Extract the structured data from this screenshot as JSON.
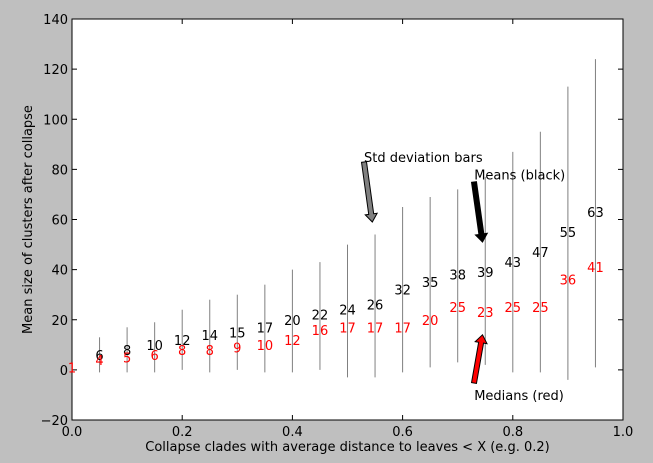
{
  "chart_data": {
    "type": "errorbar-annotated",
    "title": "",
    "xlabel": "Collapse clades with average distance to leaves < X (e.g. 0.2)",
    "ylabel": "Mean size of clusters after collapse",
    "xlim": [
      0.0,
      1.0
    ],
    "ylim": [
      -20,
      140
    ],
    "xticks": [
      "0.0",
      "0.2",
      "0.4",
      "0.6",
      "0.8",
      "1.0"
    ],
    "yticks": [
      "−20",
      "0",
      "20",
      "40",
      "60",
      "80",
      "100",
      "120",
      "140"
    ],
    "xtick_values": [
      0.0,
      0.2,
      0.4,
      0.6,
      0.8,
      1.0
    ],
    "ytick_values": [
      -20,
      0,
      20,
      40,
      60,
      80,
      100,
      120,
      140
    ],
    "points": [
      {
        "x": 0.0,
        "mean": null,
        "median": 1,
        "lo": null,
        "hi": null
      },
      {
        "x": 0.05,
        "mean": 6,
        "median": 4,
        "lo": -1,
        "hi": 13
      },
      {
        "x": 0.1,
        "mean": 8,
        "median": 5,
        "lo": -1,
        "hi": 17
      },
      {
        "x": 0.15,
        "mean": 10,
        "median": 6,
        "lo": -1,
        "hi": 19
      },
      {
        "x": 0.2,
        "mean": 12,
        "median": 8,
        "lo": 0,
        "hi": 24
      },
      {
        "x": 0.25,
        "mean": 14,
        "median": 8,
        "lo": -1,
        "hi": 28
      },
      {
        "x": 0.3,
        "mean": 15,
        "median": 9,
        "lo": 0,
        "hi": 30
      },
      {
        "x": 0.35,
        "mean": 17,
        "median": 10,
        "lo": -1,
        "hi": 34
      },
      {
        "x": 0.4,
        "mean": 20,
        "median": 12,
        "lo": -1,
        "hi": 40
      },
      {
        "x": 0.45,
        "mean": 22,
        "median": 16,
        "lo": 0,
        "hi": 43
      },
      {
        "x": 0.5,
        "mean": 24,
        "median": 17,
        "lo": -3,
        "hi": 50
      },
      {
        "x": 0.55,
        "mean": 26,
        "median": 17,
        "lo": -3,
        "hi": 54
      },
      {
        "x": 0.6,
        "mean": 32,
        "median": 17,
        "lo": -1,
        "hi": 65
      },
      {
        "x": 0.65,
        "mean": 35,
        "median": 20,
        "lo": 1,
        "hi": 69
      },
      {
        "x": 0.7,
        "mean": 38,
        "median": 25,
        "lo": 3,
        "hi": 72
      },
      {
        "x": 0.75,
        "mean": 39,
        "median": 23,
        "lo": 2,
        "hi": 77
      },
      {
        "x": 0.8,
        "mean": 43,
        "median": 25,
        "lo": -1,
        "hi": 87
      },
      {
        "x": 0.85,
        "mean": 47,
        "median": 25,
        "lo": -1,
        "hi": 95
      },
      {
        "x": 0.9,
        "mean": 55,
        "median": 36,
        "lo": -4,
        "hi": 113
      },
      {
        "x": 0.95,
        "mean": 63,
        "median": 41,
        "lo": 1,
        "hi": 124
      }
    ],
    "annotations": {
      "std": {
        "text": "Std deviation bars",
        "color": "#808080",
        "text_x": 0.53,
        "text_y": 85,
        "arrow_to_x": 0.545,
        "arrow_to_y": 59
      },
      "means": {
        "text": "Means (black)",
        "color": "#000000",
        "text_x": 0.73,
        "text_y": 78,
        "arrow_to_x": 0.745,
        "arrow_to_y": 51
      },
      "medians": {
        "text": "Medians (red)",
        "color": "#ff0000",
        "text_x": 0.73,
        "text_y": -10,
        "arrow_to_x": 0.745,
        "arrow_to_y": 14
      }
    },
    "colors": {
      "mean": "#000000",
      "median": "#ff0000",
      "bars": "#808080",
      "std_arrow": "#808080",
      "means_arrow": "#000000",
      "medians_arrow": "#ff0000"
    }
  }
}
